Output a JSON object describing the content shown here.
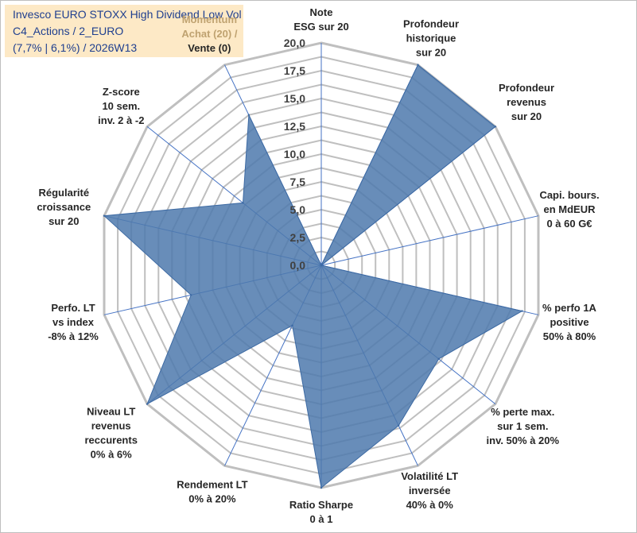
{
  "title": {
    "line1": "Invesco EURO STOXX High Dividend Low Vol",
    "line2": "C4_Actions / 2_EURO",
    "line3": "(7,7% | 6,1%) / 2026W13"
  },
  "colors": {
    "title_bg": "#fde9c6",
    "title_text": "#1f3f8f",
    "fill": "#4e79ad",
    "grid": "#bfbfbf",
    "spoke": "#4472c4",
    "momentum_text": "#bfa270"
  },
  "chart_data": {
    "type": "radar",
    "rmin": 0,
    "rmax": 20,
    "ticks": [
      "0,0",
      "2,5",
      "5,0",
      "7,5",
      "10,0",
      "12,5",
      "15,0",
      "17,5",
      "20,0"
    ],
    "axes": [
      {
        "label": [
          "Note",
          "ESG sur 20"
        ],
        "value": 0
      },
      {
        "label": [
          "Profondeur",
          "historique",
          "sur 20"
        ],
        "value": 20
      },
      {
        "label": [
          "Profondeur",
          "revenus",
          "sur 20"
        ],
        "value": 20
      },
      {
        "label": [
          "Capi. bours.",
          "en MdEUR",
          "0 à 60 G€"
        ],
        "value": 0
      },
      {
        "label": [
          "% perfo 1A",
          "positive",
          "50% à 80%"
        ],
        "value": 18.5
      },
      {
        "label": [
          "% perte max.",
          "sur 1 sem.",
          "inv. 50% à 20%"
        ],
        "value": 13.5
      },
      {
        "label": [
          "Volatilité LT",
          "inversée",
          "40% à 0%"
        ],
        "value": 16
      },
      {
        "label": [
          "Ratio Sharpe",
          "0 à 1"
        ],
        "value": 20
      },
      {
        "label": [
          "Rendement LT",
          "0% à 20%"
        ],
        "value": 6
      },
      {
        "label": [
          "Niveau LT",
          "revenus",
          "reccurents",
          "0% à 6%"
        ],
        "value": 20
      },
      {
        "label": [
          "Perfo. LT",
          "vs index",
          "-8% à 12%"
        ],
        "value": 12
      },
      {
        "label": [
          "Régularité",
          "croissance",
          "sur 20"
        ],
        "value": 20
      },
      {
        "label": [
          "Z-score",
          "10 sem.",
          "inv. 2 à -2"
        ],
        "value": 9
      },
      {
        "label": [
          "Momentum",
          "Achat (20) /"
        ],
        "label_tail": "Vente (0)",
        "value": 15
      }
    ]
  }
}
